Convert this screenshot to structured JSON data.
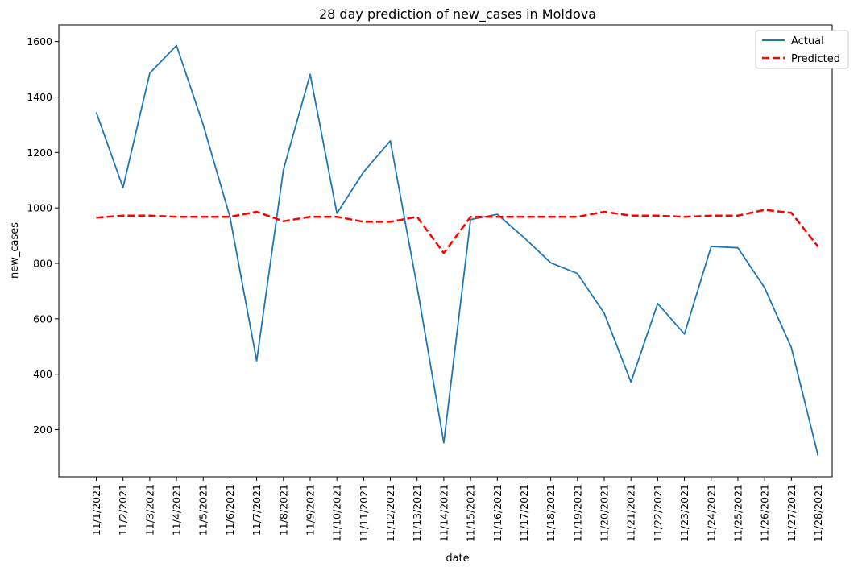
{
  "chart_data": {
    "type": "line",
    "title": "28 day prediction of new_cases in Moldova",
    "xlabel": "date",
    "ylabel": "new_cases",
    "x": [
      "11/1/2021",
      "11/2/2021",
      "11/3/2021",
      "11/4/2021",
      "11/5/2021",
      "11/6/2021",
      "11/7/2021",
      "11/8/2021",
      "11/9/2021",
      "11/10/2021",
      "11/11/2021",
      "11/12/2021",
      "11/13/2021",
      "11/14/2021",
      "11/15/2021",
      "11/16/2021",
      "11/17/2021",
      "11/18/2021",
      "11/19/2021",
      "11/20/2021",
      "11/21/2021",
      "11/22/2021",
      "11/23/2021",
      "11/24/2021",
      "11/25/2021",
      "11/26/2021",
      "11/27/2021",
      "11/28/2021"
    ],
    "ylim": [
      30,
      1660
    ],
    "yticks": [
      200,
      400,
      600,
      800,
      1000,
      1200,
      1400,
      1600
    ],
    "grid": false,
    "legend_position": "top-right",
    "series": [
      {
        "name": "Actual",
        "color": "#1f77b4",
        "style": "solid",
        "values": [
          1345,
          1073,
          1486,
          1586,
          1300,
          968,
          448,
          1138,
          1482,
          980,
          1130,
          1242,
          716,
          153,
          958,
          977,
          893,
          802,
          763,
          620,
          372,
          655,
          545,
          861,
          856,
          712,
          496,
          106
        ]
      },
      {
        "name": "Predicted",
        "color": "#ff0000",
        "style": "dashed",
        "values": [
          965,
          972,
          972,
          968,
          968,
          968,
          986,
          952,
          968,
          968,
          950,
          950,
          968,
          837,
          968,
          968,
          968,
          968,
          968,
          986,
          972,
          972,
          968,
          972,
          972,
          993,
          982,
          860
        ]
      }
    ]
  }
}
